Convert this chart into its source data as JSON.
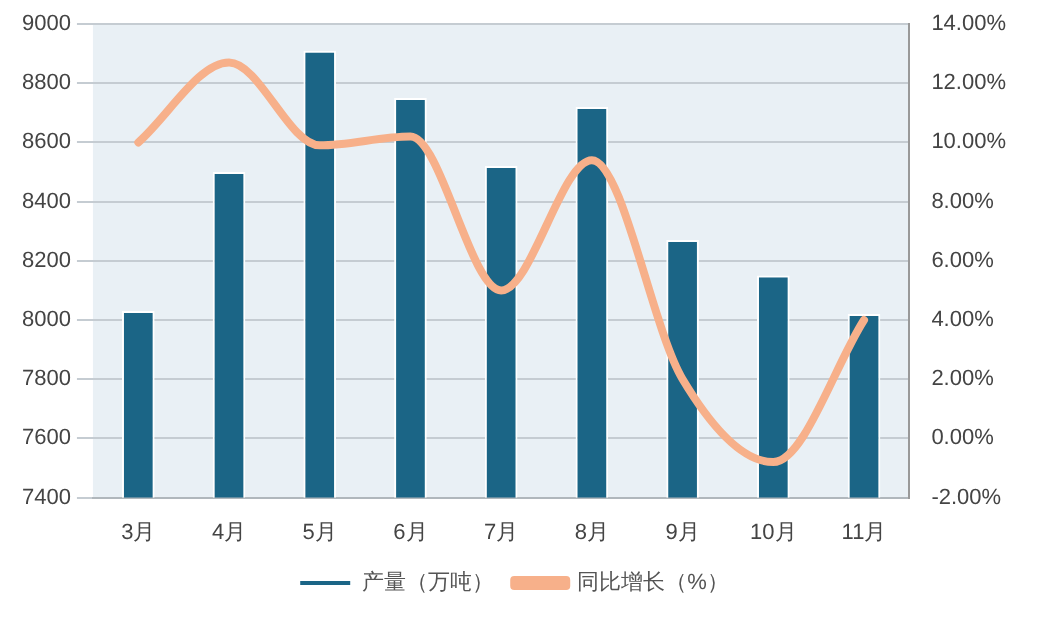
{
  "chart_data": {
    "type": "bar",
    "categories": [
      "3月",
      "4月",
      "5月",
      "6月",
      "7月",
      "8月",
      "9月",
      "10月",
      "11月"
    ],
    "series": [
      {
        "name": "产量（万吨）",
        "color": "#1b6586",
        "values": [
          8030,
          8500,
          8910,
          8750,
          8520,
          8720,
          8270,
          8150,
          8020
        ]
      },
      {
        "name": "同比增长（%）",
        "type": "line",
        "axis": "y2",
        "color": "#f7b08a",
        "values": [
          10.0,
          12.7,
          9.9,
          10.2,
          5.0,
          9.4,
          2.0,
          -0.8,
          4.0
        ]
      }
    ],
    "ylim": [
      7400,
      9000
    ],
    "yticks": [
      7400,
      7600,
      7800,
      8000,
      8200,
      8400,
      8600,
      8800,
      9000
    ],
    "y2lim": [
      -2,
      14
    ],
    "y2ticks": [
      {
        "value": -2,
        "label": "-2.00%"
      },
      {
        "value": 0,
        "label": "0.00%"
      },
      {
        "value": 2,
        "label": "2.00%"
      },
      {
        "value": 4,
        "label": "4.00%"
      },
      {
        "value": 6,
        "label": "6.00%"
      },
      {
        "value": 8,
        "label": "8.00%"
      },
      {
        "value": 10,
        "label": "10.00%"
      },
      {
        "value": 12,
        "label": "12.00%"
      },
      {
        "value": 14,
        "label": "14.00%"
      }
    ],
    "grid": "y",
    "legend": "bottom",
    "marker": "none"
  }
}
